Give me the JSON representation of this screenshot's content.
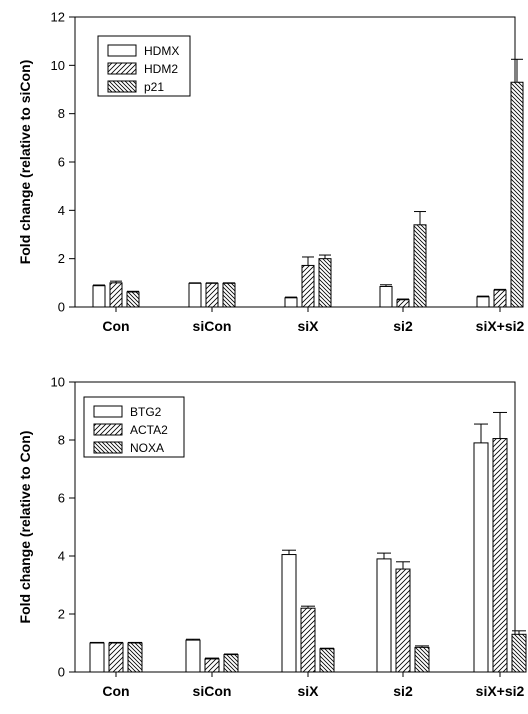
{
  "chart_data": [
    {
      "type": "bar",
      "title": "",
      "xlabel": "",
      "ylabel": "Fold change (relative to siCon)",
      "categories": [
        "Con",
        "siCon",
        "siX",
        "si2",
        "siX+si2"
      ],
      "ylim": [
        0,
        12
      ],
      "yticks": [
        0,
        2,
        4,
        6,
        8,
        10,
        12
      ],
      "grid": false,
      "legend": "top-left",
      "series": [
        {
          "name": "HDMX",
          "pattern": "none",
          "values": [
            0.88,
            0.98,
            0.38,
            0.85,
            0.42
          ],
          "errors": [
            0.03,
            0.02,
            0.03,
            0.07,
            0.03
          ]
        },
        {
          "name": "HDM2",
          "pattern": "diag-right",
          "values": [
            1.0,
            0.98,
            1.72,
            0.3,
            0.7
          ],
          "errors": [
            0.07,
            0.02,
            0.35,
            0.03,
            0.03
          ]
        },
        {
          "name": "p21",
          "pattern": "diag-left",
          "values": [
            0.62,
            0.98,
            2.0,
            3.4,
            9.3
          ],
          "errors": [
            0.03,
            0.02,
            0.15,
            0.55,
            0.95
          ]
        }
      ]
    },
    {
      "type": "bar",
      "title": "",
      "xlabel": "",
      "ylabel": "Fold change (relative to Con)",
      "categories": [
        "Con",
        "siCon",
        "siX",
        "si2",
        "siX+si2"
      ],
      "ylim": [
        0,
        10
      ],
      "yticks": [
        0,
        2,
        4,
        6,
        8,
        10
      ],
      "grid": false,
      "legend": "top-left",
      "series": [
        {
          "name": "BTG2",
          "pattern": "none",
          "values": [
            1.0,
            1.1,
            4.05,
            3.9,
            7.9
          ],
          "errors": [
            0.02,
            0.03,
            0.15,
            0.2,
            0.65
          ]
        },
        {
          "name": "ACTA2",
          "pattern": "diag-right",
          "values": [
            1.0,
            0.45,
            2.2,
            3.55,
            8.05
          ],
          "errors": [
            0.02,
            0.03,
            0.07,
            0.25,
            0.9
          ]
        },
        {
          "name": "NOXA",
          "pattern": "diag-left",
          "values": [
            1.0,
            0.6,
            0.8,
            0.85,
            1.3
          ],
          "errors": [
            0.02,
            0.02,
            0.02,
            0.05,
            0.12
          ]
        }
      ]
    }
  ]
}
